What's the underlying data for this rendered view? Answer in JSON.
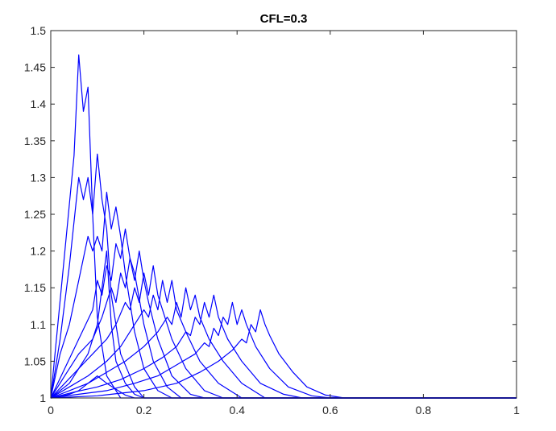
{
  "chart_data": {
    "type": "line",
    "title": "CFL=0.3",
    "xlabel": "",
    "ylabel": "",
    "xlim": [
      0,
      1
    ],
    "ylim": [
      1,
      1.5
    ],
    "xticks": [
      "0",
      "0.2",
      "0.4",
      "0.6",
      "0.8",
      "1"
    ],
    "yticks": [
      "1",
      "1.05",
      "1.1",
      "1.15",
      "1.2",
      "1.25",
      "1.3",
      "1.35",
      "1.4",
      "1.45",
      "1.5"
    ],
    "grid": false,
    "line_color": "#0000ff",
    "series": [
      {
        "points": [
          [
            0,
            1
          ],
          [
            0.02,
            1.002
          ],
          [
            0.04,
            1.005
          ],
          [
            0.06,
            1.01
          ],
          [
            0.08,
            1.02
          ],
          [
            0.1,
            1.03
          ],
          [
            0.12,
            1.02
          ],
          [
            0.14,
            1.012
          ],
          [
            0.16,
            1.004
          ],
          [
            0.18,
            1.0
          ],
          [
            1,
            1
          ]
        ]
      },
      {
        "points": [
          [
            0,
            1
          ],
          [
            0.02,
            1.01
          ],
          [
            0.04,
            1.02
          ],
          [
            0.06,
            1.04
          ],
          [
            0.08,
            1.06
          ],
          [
            0.1,
            1.1
          ],
          [
            0.12,
            1.2
          ],
          [
            0.13,
            1.1
          ],
          [
            0.14,
            1.05
          ],
          [
            0.16,
            1.02
          ],
          [
            0.18,
            1.005
          ],
          [
            0.2,
            1.0
          ],
          [
            1,
            1
          ]
        ]
      },
      {
        "points": [
          [
            0,
            1
          ],
          [
            0.05,
            1.33
          ],
          [
            0.06,
            1.467
          ],
          [
            0.07,
            1.39
          ],
          [
            0.08,
            1.423
          ],
          [
            0.09,
            1.25
          ],
          [
            0.1,
            1.11
          ],
          [
            0.12,
            1.03
          ],
          [
            0.15,
            1.0
          ],
          [
            1,
            1
          ]
        ]
      },
      {
        "points": [
          [
            0,
            1
          ],
          [
            0.02,
            1.08
          ],
          [
            0.04,
            1.18
          ],
          [
            0.06,
            1.3
          ],
          [
            0.07,
            1.27
          ],
          [
            0.08,
            1.3
          ],
          [
            0.09,
            1.25
          ],
          [
            0.1,
            1.332
          ],
          [
            0.11,
            1.27
          ],
          [
            0.12,
            1.23
          ],
          [
            0.13,
            1.14
          ],
          [
            0.15,
            1.06
          ],
          [
            0.18,
            1.015
          ],
          [
            0.2,
            1.0
          ],
          [
            1,
            1
          ]
        ]
      },
      {
        "points": [
          [
            0,
            1
          ],
          [
            0.02,
            1.06
          ],
          [
            0.04,
            1.1
          ],
          [
            0.06,
            1.16
          ],
          [
            0.08,
            1.22
          ],
          [
            0.09,
            1.2
          ],
          [
            0.1,
            1.22
          ],
          [
            0.11,
            1.2
          ],
          [
            0.12,
            1.28
          ],
          [
            0.13,
            1.23
          ],
          [
            0.14,
            1.26
          ],
          [
            0.15,
            1.22
          ],
          [
            0.16,
            1.17
          ],
          [
            0.18,
            1.09
          ],
          [
            0.2,
            1.04
          ],
          [
            0.23,
            1.01
          ],
          [
            0.26,
            1.0
          ],
          [
            1,
            1
          ]
        ]
      },
      {
        "points": [
          [
            0,
            1
          ],
          [
            0.03,
            1.04
          ],
          [
            0.06,
            1.08
          ],
          [
            0.09,
            1.12
          ],
          [
            0.1,
            1.16
          ],
          [
            0.11,
            1.14
          ],
          [
            0.12,
            1.18
          ],
          [
            0.13,
            1.16
          ],
          [
            0.14,
            1.21
          ],
          [
            0.15,
            1.19
          ],
          [
            0.16,
            1.23
          ],
          [
            0.17,
            1.19
          ],
          [
            0.18,
            1.17
          ],
          [
            0.2,
            1.1
          ],
          [
            0.22,
            1.05
          ],
          [
            0.25,
            1.015
          ],
          [
            0.28,
            1.0
          ],
          [
            1,
            1
          ]
        ]
      },
      {
        "points": [
          [
            0,
            1
          ],
          [
            0.03,
            1.03
          ],
          [
            0.06,
            1.06
          ],
          [
            0.09,
            1.08
          ],
          [
            0.11,
            1.11
          ],
          [
            0.13,
            1.15
          ],
          [
            0.14,
            1.13
          ],
          [
            0.15,
            1.17
          ],
          [
            0.16,
            1.15
          ],
          [
            0.17,
            1.19
          ],
          [
            0.18,
            1.16
          ],
          [
            0.19,
            1.2
          ],
          [
            0.2,
            1.16
          ],
          [
            0.21,
            1.13
          ],
          [
            0.23,
            1.08
          ],
          [
            0.26,
            1.03
          ],
          [
            0.3,
            1.005
          ],
          [
            0.33,
            1.0
          ],
          [
            1,
            1
          ]
        ]
      },
      {
        "points": [
          [
            0,
            1
          ],
          [
            0.03,
            1.02
          ],
          [
            0.06,
            1.04
          ],
          [
            0.09,
            1.06
          ],
          [
            0.12,
            1.08
          ],
          [
            0.14,
            1.1
          ],
          [
            0.16,
            1.13
          ],
          [
            0.17,
            1.12
          ],
          [
            0.18,
            1.15
          ],
          [
            0.19,
            1.13
          ],
          [
            0.2,
            1.17
          ],
          [
            0.21,
            1.14
          ],
          [
            0.22,
            1.18
          ],
          [
            0.23,
            1.14
          ],
          [
            0.24,
            1.12
          ],
          [
            0.26,
            1.08
          ],
          [
            0.29,
            1.04
          ],
          [
            0.33,
            1.01
          ],
          [
            0.37,
            1.0
          ],
          [
            1,
            1
          ]
        ]
      },
      {
        "points": [
          [
            0,
            1
          ],
          [
            0.04,
            1.015
          ],
          [
            0.08,
            1.03
          ],
          [
            0.12,
            1.05
          ],
          [
            0.15,
            1.07
          ],
          [
            0.18,
            1.1
          ],
          [
            0.2,
            1.12
          ],
          [
            0.21,
            1.11
          ],
          [
            0.22,
            1.14
          ],
          [
            0.23,
            1.12
          ],
          [
            0.24,
            1.16
          ],
          [
            0.25,
            1.13
          ],
          [
            0.26,
            1.16
          ],
          [
            0.27,
            1.12
          ],
          [
            0.29,
            1.09
          ],
          [
            0.32,
            1.05
          ],
          [
            0.36,
            1.02
          ],
          [
            0.41,
            1.0
          ],
          [
            1,
            1
          ]
        ]
      },
      {
        "points": [
          [
            0,
            1
          ],
          [
            0.04,
            1.01
          ],
          [
            0.08,
            1.02
          ],
          [
            0.12,
            1.035
          ],
          [
            0.16,
            1.05
          ],
          [
            0.2,
            1.07
          ],
          [
            0.23,
            1.09
          ],
          [
            0.25,
            1.11
          ],
          [
            0.26,
            1.1
          ],
          [
            0.27,
            1.13
          ],
          [
            0.28,
            1.11
          ],
          [
            0.29,
            1.15
          ],
          [
            0.3,
            1.12
          ],
          [
            0.31,
            1.14
          ],
          [
            0.32,
            1.11
          ],
          [
            0.34,
            1.08
          ],
          [
            0.37,
            1.05
          ],
          [
            0.41,
            1.02
          ],
          [
            0.46,
            1.0
          ],
          [
            1,
            1
          ]
        ]
      },
      {
        "points": [
          [
            0,
            1
          ],
          [
            0.05,
            1.008
          ],
          [
            0.1,
            1.015
          ],
          [
            0.15,
            1.025
          ],
          [
            0.2,
            1.04
          ],
          [
            0.24,
            1.055
          ],
          [
            0.27,
            1.07
          ],
          [
            0.29,
            1.09
          ],
          [
            0.3,
            1.085
          ],
          [
            0.31,
            1.11
          ],
          [
            0.32,
            1.1
          ],
          [
            0.33,
            1.13
          ],
          [
            0.34,
            1.11
          ],
          [
            0.35,
            1.14
          ],
          [
            0.36,
            1.11
          ],
          [
            0.38,
            1.08
          ],
          [
            0.41,
            1.05
          ],
          [
            0.45,
            1.02
          ],
          [
            0.5,
            1.005
          ],
          [
            0.54,
            1.0
          ],
          [
            1,
            1
          ]
        ]
      },
      {
        "points": [
          [
            0,
            1
          ],
          [
            0.06,
            1.005
          ],
          [
            0.12,
            1.01
          ],
          [
            0.18,
            1.02
          ],
          [
            0.23,
            1.03
          ],
          [
            0.27,
            1.045
          ],
          [
            0.31,
            1.06
          ],
          [
            0.33,
            1.075
          ],
          [
            0.34,
            1.07
          ],
          [
            0.35,
            1.095
          ],
          [
            0.36,
            1.085
          ],
          [
            0.37,
            1.11
          ],
          [
            0.38,
            1.1
          ],
          [
            0.39,
            1.13
          ],
          [
            0.4,
            1.1
          ],
          [
            0.41,
            1.12
          ],
          [
            0.42,
            1.1
          ],
          [
            0.44,
            1.07
          ],
          [
            0.47,
            1.04
          ],
          [
            0.51,
            1.015
          ],
          [
            0.56,
            1.003
          ],
          [
            0.6,
            1.0
          ],
          [
            1,
            1
          ]
        ]
      },
      {
        "points": [
          [
            0,
            1
          ],
          [
            0.1,
            1.003
          ],
          [
            0.2,
            1.01
          ],
          [
            0.27,
            1.02
          ],
          [
            0.32,
            1.035
          ],
          [
            0.36,
            1.05
          ],
          [
            0.39,
            1.065
          ],
          [
            0.41,
            1.08
          ],
          [
            0.42,
            1.075
          ],
          [
            0.43,
            1.1
          ],
          [
            0.44,
            1.09
          ],
          [
            0.45,
            1.12
          ],
          [
            0.46,
            1.1
          ],
          [
            0.47,
            1.085
          ],
          [
            0.49,
            1.06
          ],
          [
            0.52,
            1.035
          ],
          [
            0.55,
            1.015
          ],
          [
            0.59,
            1.004
          ],
          [
            0.63,
            1.0
          ],
          [
            1,
            1
          ]
        ]
      }
    ]
  }
}
